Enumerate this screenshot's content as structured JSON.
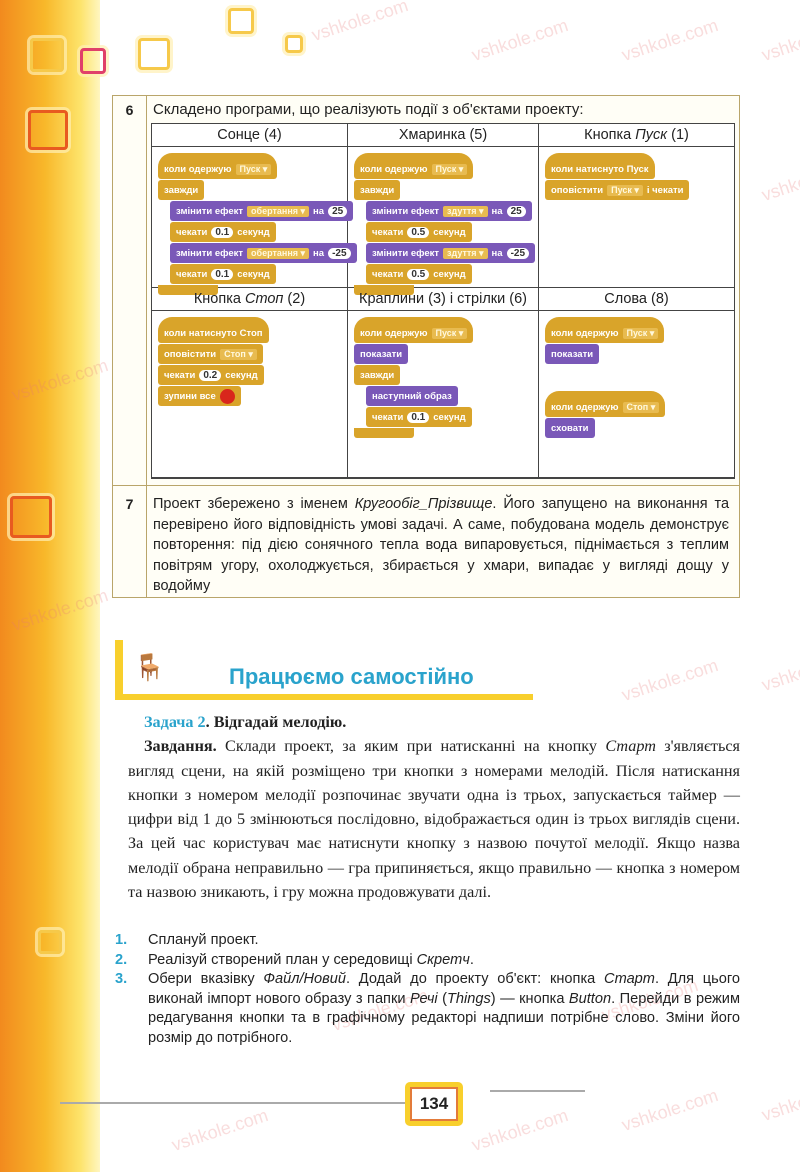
{
  "watermark": "vshkole.com",
  "row6": {
    "number": "6",
    "title": "Складено програми, що реалізують події з об'єктами проекту:",
    "cells": [
      {
        "header": "Сонце (4)",
        "blocks": [
          {
            "kind": "hat",
            "cat": "event",
            "parts": [
              {
                "t": "коли одержую"
              },
              {
                "dd": "Пуск"
              }
            ]
          },
          {
            "kind": "stack",
            "cat": "control",
            "parts": [
              {
                "t": "завжди"
              }
            ]
          },
          {
            "kind": "stack",
            "cat": "looks",
            "indent": 1,
            "parts": [
              {
                "t": "змінити ефект"
              },
              {
                "dd": "обертання"
              },
              {
                "t": "на"
              },
              {
                "nv": "25"
              }
            ]
          },
          {
            "kind": "stack",
            "cat": "control",
            "indent": 1,
            "parts": [
              {
                "t": "чекати"
              },
              {
                "nv": "0.1"
              },
              {
                "t": "секунд"
              }
            ]
          },
          {
            "kind": "stack",
            "cat": "looks",
            "indent": 1,
            "parts": [
              {
                "t": "змінити ефект"
              },
              {
                "dd": "обертання"
              },
              {
                "t": "на"
              },
              {
                "nv": "-25"
              }
            ]
          },
          {
            "kind": "stack",
            "cat": "control",
            "indent": 1,
            "parts": [
              {
                "t": "чекати"
              },
              {
                "nv": "0.1"
              },
              {
                "t": "секунд"
              }
            ]
          },
          {
            "kind": "cend"
          }
        ]
      },
      {
        "header": "Хмаринка (5)",
        "blocks": [
          {
            "kind": "hat",
            "cat": "event",
            "parts": [
              {
                "t": "коли одержую"
              },
              {
                "dd": "Пуск"
              }
            ]
          },
          {
            "kind": "stack",
            "cat": "control",
            "parts": [
              {
                "t": "завжди"
              }
            ]
          },
          {
            "kind": "stack",
            "cat": "looks",
            "indent": 1,
            "parts": [
              {
                "t": "змінити ефект"
              },
              {
                "dd": "здуття"
              },
              {
                "t": "на"
              },
              {
                "nv": "25"
              }
            ]
          },
          {
            "kind": "stack",
            "cat": "control",
            "indent": 1,
            "parts": [
              {
                "t": "чекати"
              },
              {
                "nv": "0.5"
              },
              {
                "t": "секунд"
              }
            ]
          },
          {
            "kind": "stack",
            "cat": "looks",
            "indent": 1,
            "parts": [
              {
                "t": "змінити ефект"
              },
              {
                "dd": "здуття"
              },
              {
                "t": "на"
              },
              {
                "nv": "-25"
              }
            ]
          },
          {
            "kind": "stack",
            "cat": "control",
            "indent": 1,
            "parts": [
              {
                "t": "чекати"
              },
              {
                "nv": "0.5"
              },
              {
                "t": "секунд"
              }
            ]
          },
          {
            "kind": "cend"
          }
        ]
      },
      {
        "header_prefix": "Кнопка ",
        "header_italic": "Пуск",
        "header_suffix": " (1)",
        "blocks": [
          {
            "kind": "hat",
            "cat": "event",
            "parts": [
              {
                "t": "коли натиснуто Пуск"
              }
            ]
          },
          {
            "kind": "stack",
            "cat": "event",
            "parts": [
              {
                "t": "оповістити"
              },
              {
                "dd": "Пуск"
              },
              {
                "t": "і чекати"
              }
            ]
          }
        ]
      },
      {
        "header_prefix": "Кнопка ",
        "header_italic": "Стоп",
        "header_suffix": " (2)",
        "blocks": [
          {
            "kind": "hat",
            "cat": "event",
            "parts": [
              {
                "t": "коли натиснуто Стоп"
              }
            ]
          },
          {
            "kind": "stack",
            "cat": "event",
            "parts": [
              {
                "t": "оповістити"
              },
              {
                "dd": "Стоп"
              }
            ]
          },
          {
            "kind": "stack",
            "cat": "control",
            "parts": [
              {
                "t": "чекати"
              },
              {
                "nv": "0.2"
              },
              {
                "t": "секунд"
              }
            ]
          },
          {
            "kind": "stack",
            "cat": "control",
            "parts": [
              {
                "t": "зупини все"
              },
              {
                "stop": true
              }
            ]
          }
        ]
      },
      {
        "header": "Краплини (3) і стрілки (6)",
        "blocks": [
          {
            "kind": "hat",
            "cat": "event",
            "parts": [
              {
                "t": "коли одержую"
              },
              {
                "dd": "Пуск"
              }
            ]
          },
          {
            "kind": "stack",
            "cat": "looks",
            "parts": [
              {
                "t": "показати"
              }
            ]
          },
          {
            "kind": "stack",
            "cat": "control",
            "parts": [
              {
                "t": "завжди"
              }
            ]
          },
          {
            "kind": "stack",
            "cat": "looks",
            "indent": 1,
            "parts": [
              {
                "t": "наступний образ"
              }
            ]
          },
          {
            "kind": "stack",
            "cat": "control",
            "indent": 1,
            "parts": [
              {
                "t": "чекати"
              },
              {
                "nv": "0.1"
              },
              {
                "t": "секунд"
              }
            ]
          },
          {
            "kind": "cend"
          }
        ]
      },
      {
        "header": "Слова (8)",
        "blocks": [
          {
            "kind": "hat",
            "cat": "event",
            "parts": [
              {
                "t": "коли одержую"
              },
              {
                "dd": "Пуск"
              }
            ]
          },
          {
            "kind": "stack",
            "cat": "looks",
            "parts": [
              {
                "t": "показати"
              }
            ]
          },
          {
            "kind": "gap"
          },
          {
            "kind": "hat",
            "cat": "event",
            "parts": [
              {
                "t": "коли одержую"
              },
              {
                "dd": "Стоп"
              }
            ]
          },
          {
            "kind": "stack",
            "cat": "looks",
            "parts": [
              {
                "t": "сховати"
              }
            ]
          }
        ]
      }
    ]
  },
  "row7": {
    "number": "7",
    "text_a": "Проект збережено з іменем ",
    "text_italic": "Кругообіг_Прізвище",
    "text_b": ". Його запущено на виконання та перевірено його відповідність умові задачі. А саме, побудована модель демонструє повторення: під дією сонячного тепла вода випаровується, піднімається з теплим повітрям угору, охолоджується, збирається у хмари, випадає у вигляді дощу у водойму"
  },
  "section": {
    "title": "Працюємо самостійно"
  },
  "task": {
    "label": "Задача 2",
    "heading": ". Відгадай мелодію.",
    "lead": "Завдання.",
    "text_a": " Склади проект, за яким при натисканні на кнопку ",
    "italic": "Старт",
    "text_b": " з'являється вигляд сцени, на якій розміщено три кнопки з номерами мелодій. Після натискання кнопки з номером мелодії розпочинає звучати одна із трьох, запускається таймер — цифри від 1 до 5 змінюються послідовно, відображається один із трьох виглядів сцени. За цей час користувач має натиснути кнопку з назвою почутої мелодії. Якщо назва мелодії обрана неправильно — гра припиняється, якщо правильно — кнопка з номером та назвою зникають, і гру можна продовжувати далі."
  },
  "steps": [
    {
      "n": "1.",
      "a": "Сплануй проект."
    },
    {
      "n": "2.",
      "a": "Реалізуй створений план у середовищі ",
      "i": "Скретч",
      "b": "."
    },
    {
      "n": "3.",
      "a": "Обери вказівку ",
      "i": "Файл/Новий",
      "b": ". Додай до проекту об'єкт: кнопка ",
      "i2": "Старт",
      "c": ". Для цього виконай імпорт нового образу з папки ",
      "i3": "Речі",
      "d": " (",
      "i4": "Things",
      "e": ") — кнопка ",
      "i5": "Button",
      "f": ". Перейди в режим редагування кнопки та в графічному редакторі надпиши потрібне слово. Зміни його розмір до потрібного."
    }
  ],
  "page_number": "134",
  "colors": {
    "accent": "#2aa3cc",
    "event": "#d9a42a",
    "looks": "#7a58b8",
    "band": "#f8b82a"
  }
}
